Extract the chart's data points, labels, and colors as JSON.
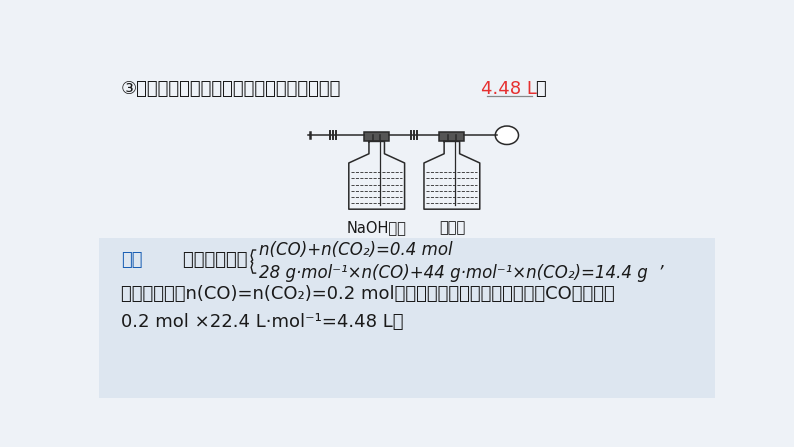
{
  "bg_color": "#eef2f7",
  "lower_bg": "#dde6f0",
  "title_line": "③标准状况下，气球中收集到的气体的体积为",
  "answer_text": "4.48 L",
  "answer_color": "#e63030",
  "semicolon": "；",
  "jixi_label": "解析",
  "jixi_color": "#1a5fb4",
  "gen_ju": "根据题意可得",
  "eq1": "n(CO)+n(CO₂)=0.4 mol",
  "eq2": "28 g·mol⁻¹×n(CO)+44 g·mol⁻¹×n(CO₂)=14.4 g",
  "comma_prime": "，",
  "conclusion1": "联立两式解得n(CO)=n(CO₂)=0.2 mol，则标准状况下气球中收集到的CO的体积为",
  "conclusion2": "0.2 mol ×22.4 L·mol⁻¹=4.48 L。",
  "naoh_label": "NaOH溶液",
  "hso4_label": "浓硫酸",
  "text_color": "#1a1a1a",
  "font_size_main": 13,
  "font_size_formula": 12,
  "font_size_label": 10.5
}
